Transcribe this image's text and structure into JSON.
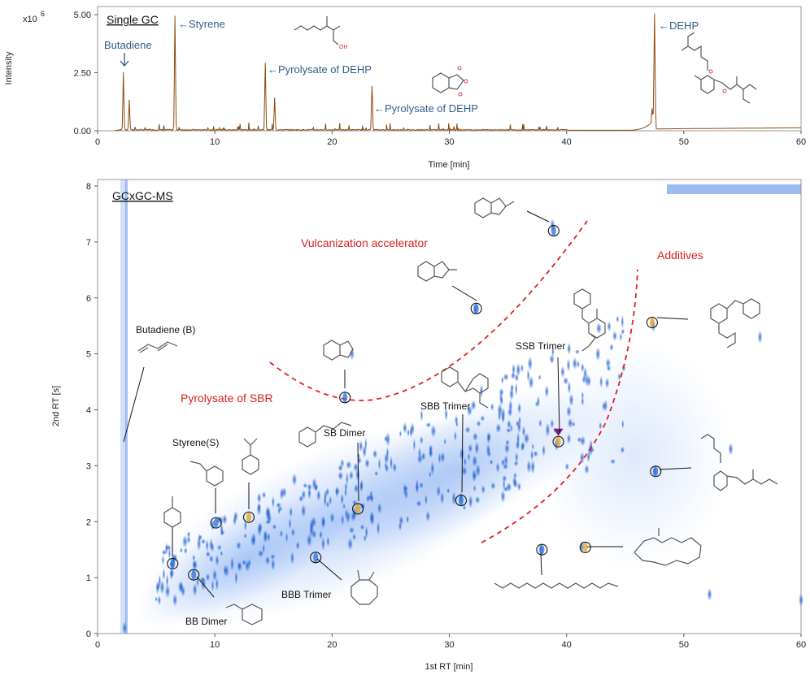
{
  "chart_data": [
    {
      "type": "line",
      "title": "Single GC",
      "xlabel": "Time [min]",
      "ylabel": "Intensity",
      "y_scale_label": "x10",
      "y_scale_exp": "6",
      "xlim": [
        0,
        60
      ],
      "ylim": [
        0,
        5.0
      ],
      "x_ticks": [
        "0",
        "10",
        "20",
        "30",
        "40",
        "50",
        "60"
      ],
      "y_ticks": [
        "0.00",
        "2.50",
        "5.00"
      ],
      "color": "#8b4a0f",
      "peaks": [
        {
          "x": 2.2,
          "y": 2.5
        },
        {
          "x": 2.7,
          "y": 1.3
        },
        {
          "x": 6.6,
          "y": 4.8
        },
        {
          "x": 14.3,
          "y": 2.9
        },
        {
          "x": 15.1,
          "y": 1.4
        },
        {
          "x": 23.4,
          "y": 1.9
        },
        {
          "x": 47.5,
          "y": 5.0
        },
        {
          "x": 47.3,
          "y": 0.6
        }
      ],
      "annotations": [
        {
          "text": "Butadiene",
          "x": 2.2
        },
        {
          "text": "←Styrene",
          "x": 6.6
        },
        {
          "text": "←Pyrolysate of DEHP",
          "x": 14.3
        },
        {
          "text": "←Pyrolysate of DEHP",
          "x": 23.4
        },
        {
          "text": "←DEHP",
          "x": 47.6
        }
      ]
    },
    {
      "type": "scatter",
      "title": "GCxGC-MS",
      "xlabel": "1st RT [min]",
      "ylabel": "2nd RT [s]",
      "xlim": [
        0,
        60
      ],
      "ylim": [
        0,
        8
      ],
      "x_ticks": [
        "0",
        "10",
        "20",
        "30",
        "40",
        "50",
        "60"
      ],
      "y_ticks": [
        "0",
        "1",
        "2",
        "3",
        "4",
        "5",
        "6",
        "7",
        "8"
      ],
      "region_labels": [
        "Vulcanization accelerator",
        "Additives",
        "Pyrolysate of SBR"
      ],
      "compounds": [
        {
          "label": "Butadiene (B)",
          "x": 2.2,
          "y": 3.4
        },
        {
          "label": "",
          "x": 6.4,
          "y": 1.25
        },
        {
          "label": "Styrene(S)",
          "x": 10.1,
          "y": 1.98
        },
        {
          "label": "",
          "x": 12.9,
          "y": 2.08
        },
        {
          "label": "BB Dimer",
          "x": 8.2,
          "y": 1.05
        },
        {
          "label": "BBB Trimer",
          "x": 18.6,
          "y": 1.36
        },
        {
          "label": "SB Dimer",
          "x": 22.2,
          "y": 2.23
        },
        {
          "label": "",
          "x": 21.1,
          "y": 4.22
        },
        {
          "label": "SBB Trimer",
          "x": 31.0,
          "y": 2.38
        },
        {
          "label": "SSB Trimer",
          "x": 39.3,
          "y": 3.43
        },
        {
          "label": "",
          "x": 32.3,
          "y": 5.81
        },
        {
          "label": "",
          "x": 38.9,
          "y": 7.2
        },
        {
          "label": "",
          "x": 47.3,
          "y": 5.56
        },
        {
          "label": "",
          "x": 47.6,
          "y": 2.9
        },
        {
          "label": "",
          "x": 37.9,
          "y": 1.5
        },
        {
          "label": "",
          "x": 41.6,
          "y": 1.54
        }
      ]
    }
  ]
}
